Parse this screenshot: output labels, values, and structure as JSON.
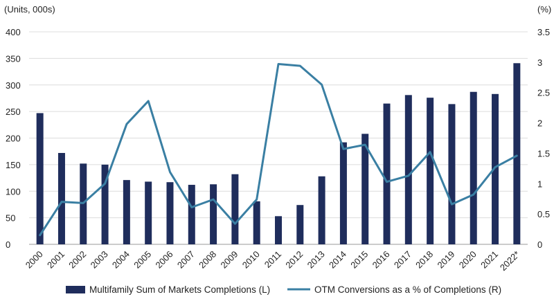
{
  "chart_data": {
    "type": "bar+line",
    "title": "",
    "left_axis": {
      "label": "(Units, 000s)",
      "ylim": [
        0,
        400
      ],
      "ticks": [
        0,
        50,
        100,
        150,
        200,
        250,
        300,
        350,
        400
      ]
    },
    "right_axis": {
      "label": "(%)",
      "ylim": [
        0,
        3.5
      ],
      "ticks": [
        "0",
        "0.5",
        "1",
        "1.5",
        "2",
        "2.5",
        "3",
        "3.5"
      ]
    },
    "categories": [
      "2000",
      "2001",
      "2002",
      "2003",
      "2004",
      "2005",
      "2006",
      "2007",
      "2008",
      "2009",
      "2010",
      "2011",
      "2012",
      "2013",
      "2014",
      "2015",
      "2016",
      "2017",
      "2018",
      "2019",
      "2020",
      "2021",
      "2022*"
    ],
    "series": [
      {
        "name": "Multifamily Sum of Markets Completions (L)",
        "type": "bar",
        "axis": "left",
        "color": "#1f2d5c",
        "values": [
          247,
          172,
          152,
          150,
          121,
          118,
          117,
          112,
          113,
          132,
          81,
          53,
          74,
          128,
          192,
          208,
          265,
          281,
          276,
          264,
          287,
          283,
          341
        ]
      },
      {
        "name": "OTM Conversions as a % of Completions (R)",
        "type": "line",
        "axis": "right",
        "color": "#3a7fa3",
        "values": [
          0.15,
          0.7,
          0.68,
          1.0,
          1.98,
          2.36,
          1.19,
          0.61,
          0.74,
          0.34,
          0.74,
          2.97,
          2.94,
          2.63,
          1.57,
          1.64,
          1.03,
          1.13,
          1.52,
          0.66,
          0.82,
          1.27,
          1.46
        ]
      }
    ],
    "legend_position": "bottom"
  }
}
